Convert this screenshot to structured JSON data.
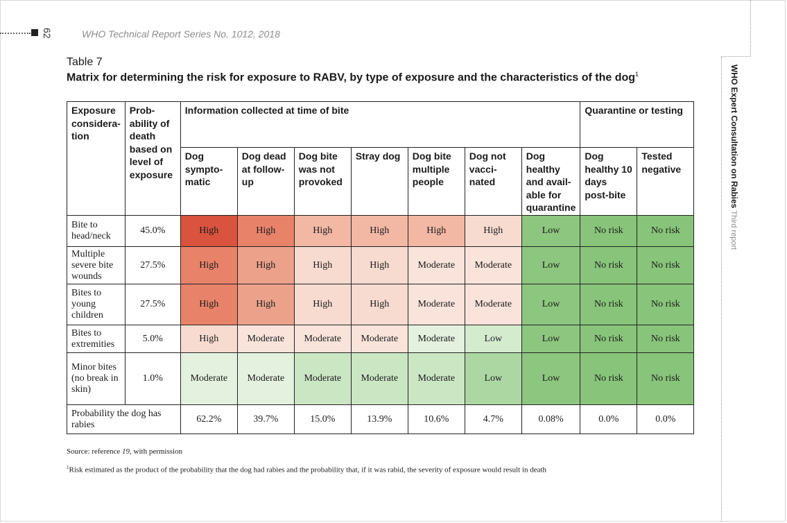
{
  "page_number": "62",
  "running_head": "WHO Technical Report Series No. 1012, 2018",
  "side_title_bold": "WHO Expert Consultation on Rabies",
  "side_title_light": "Third report",
  "table_number": "Table 7",
  "table_title": "Matrix for determining the risk for exposure to RABV, by type of exposure and the characteristics of the dog",
  "table_title_sup": "1",
  "headers": {
    "exposure": "Exposure considera-tion",
    "probability": "Prob-ability of death based on level of exposure",
    "info_group": "Information collected at time of bite",
    "quarantine_group": "Quarantine or testing",
    "columns": [
      "Dog sympto-matic",
      "Dog dead at follow-up",
      "Dog bite was not provoked",
      "Stray dog",
      "Dog bite multiple people",
      "Dog not vacci-nated",
      "Dog healthy and avail-able for quarantine",
      "Dog healthy 10 days post-bite",
      "Tested negative"
    ]
  },
  "rows": [
    {
      "label": "Bite to head/neck",
      "prob": "45.0%",
      "cells": [
        "High",
        "High",
        "High",
        "High",
        "High",
        "High",
        "Low",
        "No risk",
        "No risk"
      ]
    },
    {
      "label": "Multiple severe bite wounds",
      "prob": "27.5%",
      "cells": [
        "High",
        "High",
        "High",
        "High",
        "Moderate",
        "Moderate",
        "Low",
        "No risk",
        "No risk"
      ]
    },
    {
      "label": "Bites to young children",
      "prob": "27.5%",
      "cells": [
        "High",
        "High",
        "High",
        "High",
        "Moderate",
        "Moderate",
        "Low",
        "No risk",
        "No risk"
      ]
    },
    {
      "label": "Bites to extremities",
      "prob": "5.0%",
      "cells": [
        "High",
        "Moderate",
        "Moderate",
        "Moderate",
        "Moderate",
        "Low",
        "Low",
        "No risk",
        "No risk"
      ]
    },
    {
      "label": "Minor bites (no break in skin)",
      "prob": "1.0%",
      "cells": [
        "Moderate",
        "Moderate",
        "Moderate",
        "Moderate",
        "Moderate",
        "Low",
        "Low",
        "No risk",
        "No risk"
      ]
    }
  ],
  "footer_row": {
    "label": "Probability the dog has rabies",
    "values": [
      "62.2%",
      "39.7%",
      "15.0%",
      "13.9%",
      "10.6%",
      "4.7%",
      "0.08%",
      "0.0%",
      "0.0%"
    ]
  },
  "source_prefix": "Source: reference ",
  "source_ref": "19",
  "source_suffix": ", with permission",
  "footnote_sup": "1",
  "footnote": "Risk estimated as the product of the probability that the dog had rabies and the probability that, if it was rabid, the severity of exposure would result in death",
  "colors": {
    "high_dark": "#d9533e",
    "high_light": "#f8dbd0",
    "moderate_green": "#cbe6c3",
    "low_green": "#acd7a2",
    "no_risk_green": "#88c47a"
  }
}
